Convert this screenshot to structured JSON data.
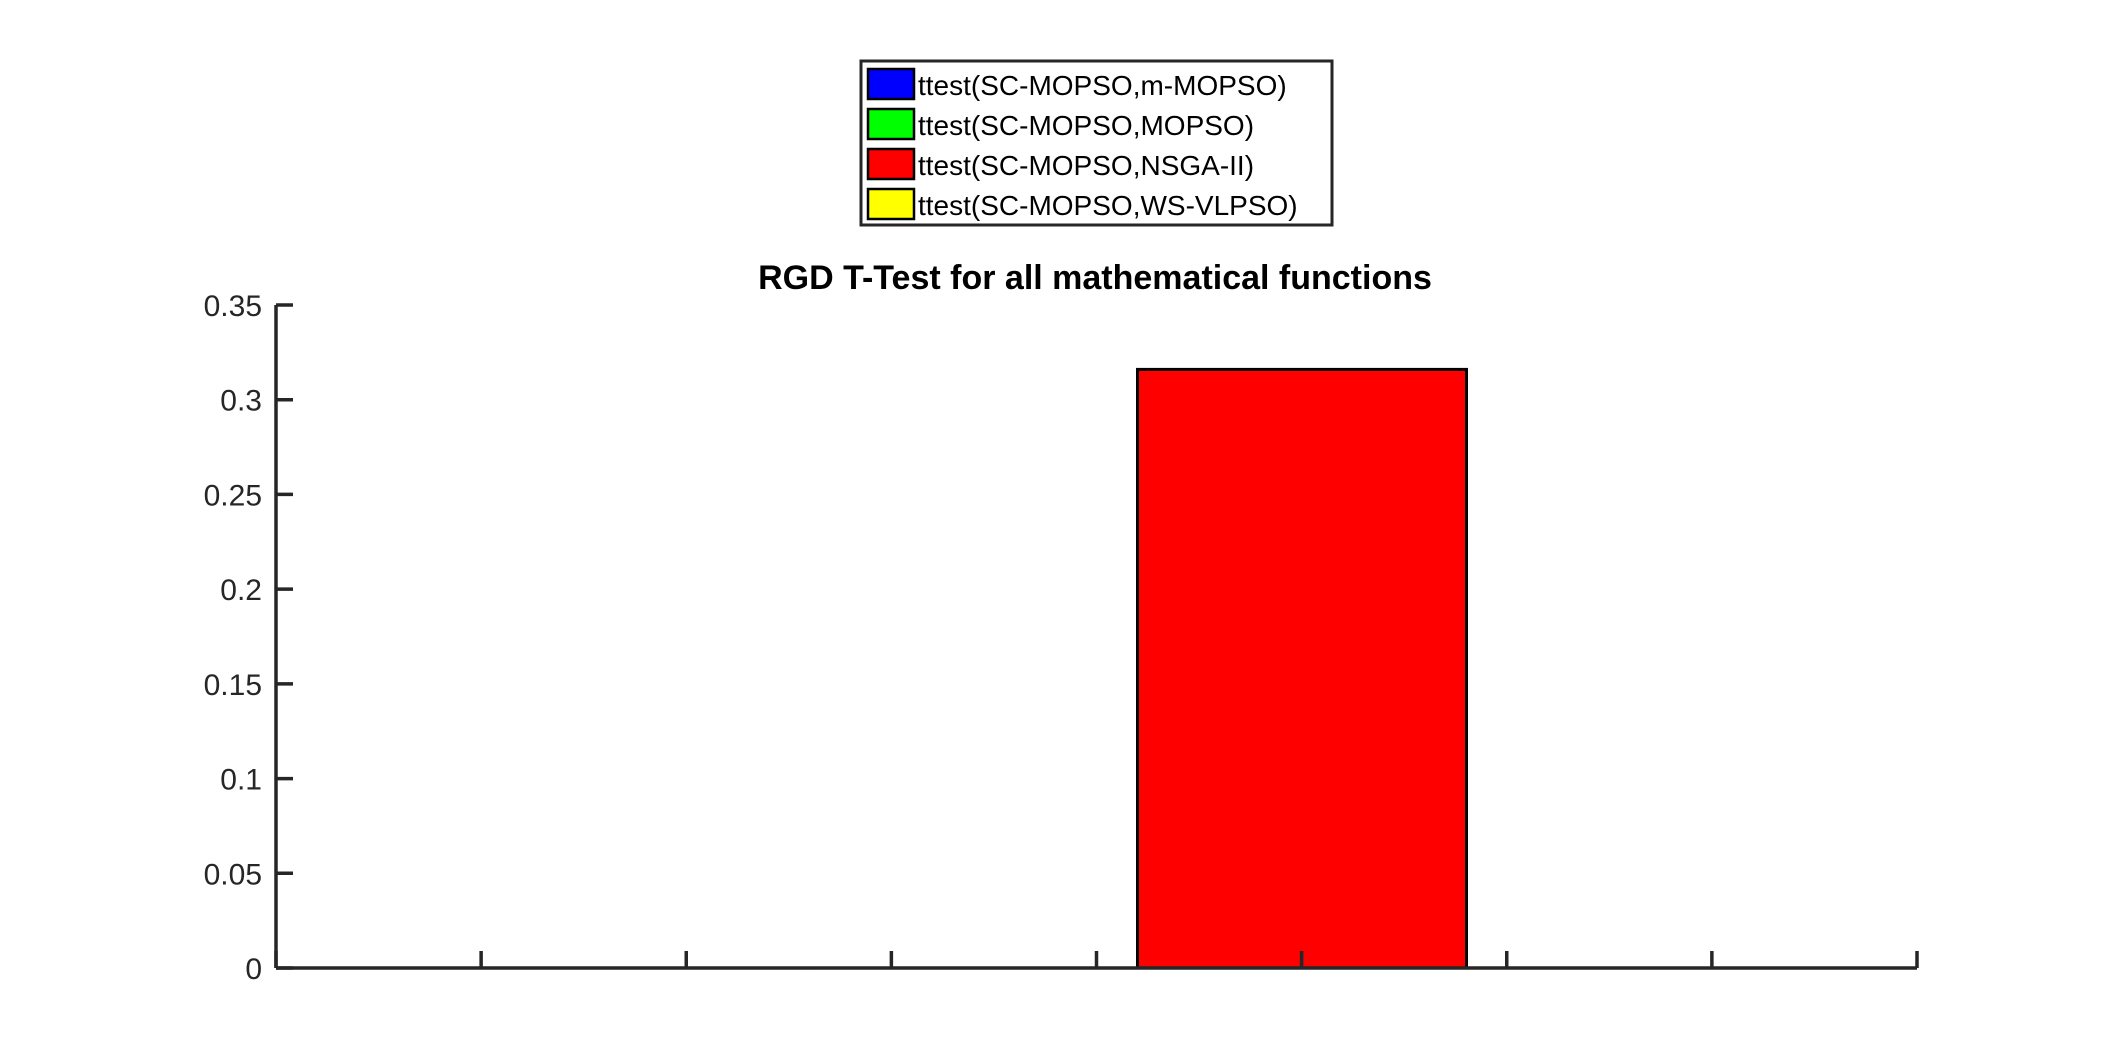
{
  "chart_data": {
    "type": "bar",
    "title": "RGD T-Test for all mathematical functions",
    "xlabel": "",
    "ylabel": "",
    "ylim": [
      0,
      0.35
    ],
    "yticks": [
      0,
      0.05,
      0.1,
      0.15,
      0.2,
      0.25,
      0.3,
      0.35
    ],
    "ytick_labels": [
      "0",
      "0.05",
      "0.1",
      "0.15",
      "0.2",
      "0.25",
      "0.3",
      "0.35"
    ],
    "x_tick_count": 9,
    "show_x_tick_labels": false,
    "grid": false,
    "legend_position": "top-center",
    "series": [
      {
        "name": "ttest(SC-MOPSO,m-MOPSO)",
        "color": "#0000ff",
        "value": 0
      },
      {
        "name": "ttest(SC-MOPSO,MOPSO)",
        "color": "#00ff00",
        "value": 0
      },
      {
        "name": "ttest(SC-MOPSO,NSGA-II)",
        "color": "#ff0000",
        "value": 0.316
      },
      {
        "name": "ttest(SC-MOPSO,WS-VLPSO)",
        "color": "#ffff00",
        "value": 0
      }
    ]
  }
}
